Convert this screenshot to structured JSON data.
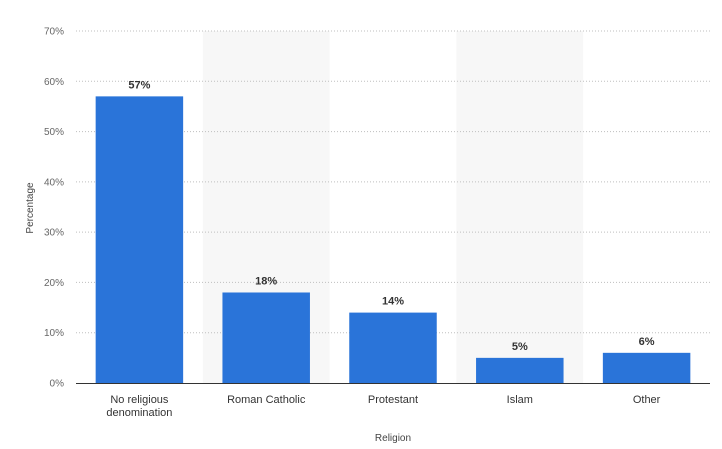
{
  "chart_data": {
    "type": "bar",
    "title": "",
    "xlabel": "Religion",
    "ylabel": "Percentage",
    "categories": [
      [
        "No religious",
        "denomination"
      ],
      [
        "Roman Catholic"
      ],
      [
        "Protestant"
      ],
      [
        "Islam"
      ],
      [
        "Other"
      ]
    ],
    "values": [
      57,
      18,
      14,
      5,
      6
    ],
    "value_labels": [
      "57%",
      "18%",
      "14%",
      "5%",
      "6%"
    ],
    "ylim": [
      0,
      70
    ],
    "yticks": [
      0,
      10,
      20,
      30,
      40,
      50,
      60,
      70
    ],
    "ytick_labels": [
      "0%",
      "10%",
      "20%",
      "30%",
      "40%",
      "50%",
      "60%",
      "70%"
    ],
    "grid": true,
    "legend": "none",
    "colors": {
      "bar": "#2a74d9",
      "band": "#f7f7f7",
      "grid": "#bfbfbf",
      "axis": "#333333"
    }
  }
}
